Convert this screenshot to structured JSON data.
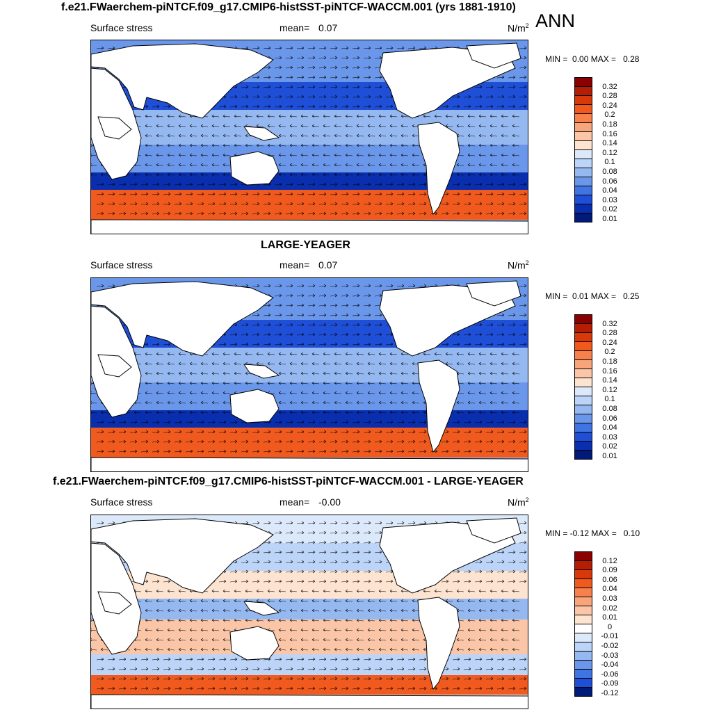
{
  "season": "ANN",
  "panels": [
    {
      "id": "top",
      "title": "f.e21.FWaerchem-piNTCF.f09_g17.CMIP6-histSST-piNTCF-WACCM.001 (yrs 1881-1910)",
      "variable": "Surface stress",
      "mean_label": "mean=",
      "mean_value": "0.07",
      "units": "N/m",
      "units_sup": "2",
      "min_label": "MIN =",
      "min_value": "0.00",
      "max_label": "MAX =",
      "max_value": "0.28",
      "colorbar_labels": [
        "0.32",
        "0.28",
        "0.24",
        "0.2",
        "0.18",
        "0.16",
        "0.14",
        "0.12",
        "0.1",
        "0.08",
        "0.06",
        "0.04",
        "0.03",
        "0.02",
        "0.01"
      ],
      "colorbar_colors": [
        "#8b0000",
        "#b51d04",
        "#d8390a",
        "#f05a1e",
        "#f6814d",
        "#f9a57c",
        "#fbc6a8",
        "#fde4d0",
        "#dce9fb",
        "#bcd4f7",
        "#95b8f1",
        "#6b97ea",
        "#3f74e3",
        "#1f4fd6",
        "#0a2fae",
        "#001a7a"
      ]
    },
    {
      "id": "middle",
      "title": "LARGE-YEAGER",
      "variable": "Surface stress",
      "mean_label": "mean=",
      "mean_value": "0.07",
      "units": "N/m",
      "units_sup": "2",
      "min_label": "MIN =",
      "min_value": "0.01",
      "max_label": "MAX =",
      "max_value": "0.25",
      "colorbar_labels": [
        "0.32",
        "0.28",
        "0.24",
        "0.2",
        "0.18",
        "0.16",
        "0.14",
        "0.12",
        "0.1",
        "0.08",
        "0.06",
        "0.04",
        "0.03",
        "0.02",
        "0.01"
      ],
      "colorbar_colors": [
        "#8b0000",
        "#b51d04",
        "#d8390a",
        "#f05a1e",
        "#f6814d",
        "#f9a57c",
        "#fbc6a8",
        "#fde4d0",
        "#dce9fb",
        "#bcd4f7",
        "#95b8f1",
        "#6b97ea",
        "#3f74e3",
        "#1f4fd6",
        "#0a2fae",
        "#001a7a"
      ]
    },
    {
      "id": "bottom",
      "title": "f.e21.FWaerchem-piNTCF.f09_g17.CMIP6-histSST-piNTCF-WACCM.001 - LARGE-YEAGER",
      "variable": "Surface stress",
      "mean_label": "mean=",
      "mean_value": "-0.00",
      "units": "N/m",
      "units_sup": "2",
      "min_label": "MIN =",
      "min_value": "-0.12",
      "max_label": "MAX =",
      "max_value": "0.10",
      "colorbar_labels": [
        "0.12",
        "0.09",
        "0.06",
        "0.04",
        "0.03",
        "0.02",
        "0.01",
        "0",
        "-0.01",
        "-0.02",
        "-0.03",
        "-0.04",
        "-0.06",
        "-0.09",
        "-0.12"
      ],
      "colorbar_colors": [
        "#8b0000",
        "#b51d04",
        "#d8390a",
        "#f05a1e",
        "#f6814d",
        "#f9a57c",
        "#fbc6a8",
        "#fde4d0",
        "#ffffff",
        "#dce9fb",
        "#bcd4f7",
        "#95b8f1",
        "#6b97ea",
        "#3f74e3",
        "#1f4fd6",
        "#001a7a"
      ]
    }
  ]
}
